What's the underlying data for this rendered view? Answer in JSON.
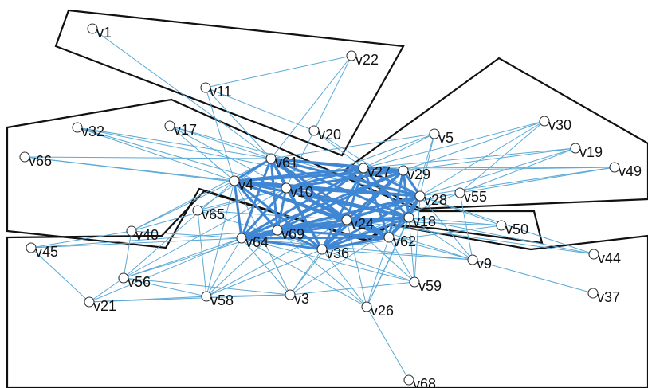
{
  "graph": {
    "colors": {
      "edge": "#5aa9d6",
      "edge_dense": "#3f86d4",
      "cluster_outline": "#111111",
      "node_fill": "#ffffff",
      "node_stroke": "#333333"
    },
    "nodes": [
      "v1",
      "v22",
      "v11",
      "v20",
      "v5",
      "v30",
      "v19",
      "v49",
      "v32",
      "v17",
      "v66",
      "v61",
      "v27",
      "v29",
      "v4",
      "v10",
      "v28",
      "v55",
      "v65",
      "v24",
      "v18",
      "v50",
      "v40",
      "v69",
      "v64",
      "v62",
      "v45",
      "v36",
      "v9",
      "v44",
      "v56",
      "v59",
      "v37",
      "v21",
      "v58",
      "v3",
      "v26",
      "v68"
    ]
  }
}
